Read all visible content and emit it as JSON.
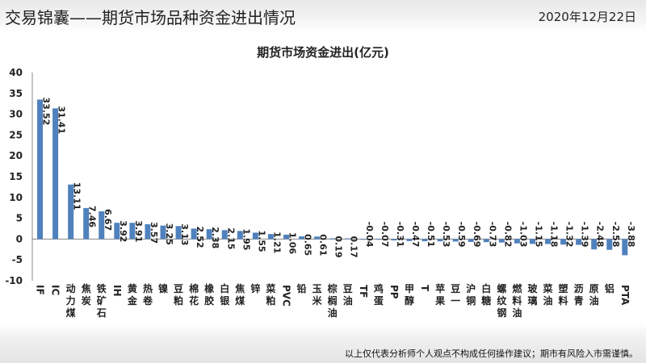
{
  "header": {
    "title": "交易锦囊——期货市场品种资金进出情况",
    "date": "2020年12月22日"
  },
  "footer": {
    "note": "以上仅代表分析师个人观点不构成任何操作建议；期市有风险入市需谨慎。"
  },
  "colors": {
    "bar": "#4f81bd",
    "axis": "#888888"
  },
  "chart_data": {
    "type": "bar",
    "title": "期货市场资金进出(亿元)",
    "xlabel": "",
    "ylabel": "",
    "ylim": [
      -10,
      40
    ],
    "yticks": [
      40,
      35,
      30,
      25,
      20,
      15,
      10,
      5,
      0,
      -5,
      -10
    ],
    "grid": false,
    "categories": [
      "IF",
      "IC",
      "动力煤",
      "焦炭",
      "铁矿石",
      "IH",
      "黄金",
      "热卷",
      "镍",
      "豆粕",
      "棉花",
      "橡胶",
      "白银",
      "焦煤",
      "锌",
      "菜粕",
      "PVC",
      "铅",
      "玉米",
      "棕榈油",
      "豆油",
      "TF",
      "鸡蛋",
      "PP",
      "甲醇",
      "T",
      "苹果",
      "豆一",
      "沪铜",
      "白糖",
      "螺纹钢",
      "燃料油",
      "玻璃",
      "菜油",
      "塑料",
      "沥青",
      "原油",
      "铝",
      "PTA"
    ],
    "values": [
      33.52,
      31.41,
      13.11,
      7.46,
      6.67,
      3.92,
      3.91,
      3.57,
      3.25,
      3.13,
      2.52,
      2.38,
      2.15,
      1.95,
      1.55,
      1.21,
      1.06,
      0.65,
      0.61,
      0.19,
      0.17,
      -0.04,
      -0.07,
      -0.31,
      -0.47,
      -0.51,
      -0.53,
      -0.59,
      -0.69,
      -0.73,
      -0.82,
      -1.03,
      -1.15,
      -1.18,
      -1.32,
      -1.39,
      -2.48,
      -2.58,
      -3.88
    ],
    "labels": [
      "33.52",
      "31.41",
      "13.11",
      "7.46",
      "6.67",
      "3.92",
      "3.91",
      "3.57",
      "3.25",
      "3.13",
      "2.52",
      "2.38",
      "2.15",
      "1.95",
      "1.55",
      "1.21",
      "1.06",
      "0.65",
      "0.61",
      "0.19",
      "0.17",
      "-0.04",
      "-0.07",
      "-0.31",
      "-0.47",
      "-0.51",
      "-0.53",
      "-0.59",
      "-0.69",
      "-0.73",
      "-0.82",
      "-1.03",
      "-1.15",
      "-1.18",
      "-1.32",
      "-1.39",
      "-2.48",
      "-2.58",
      "-3.88"
    ]
  }
}
